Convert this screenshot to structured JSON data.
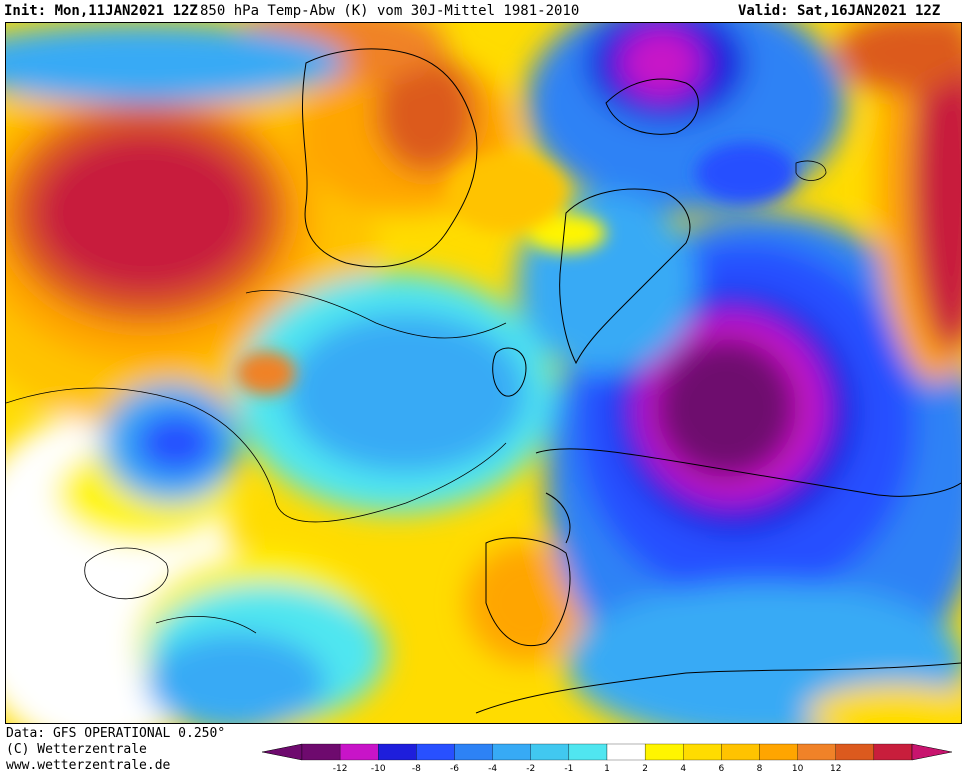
{
  "header": {
    "init": "Init: Mon,11JAN2021 12Z",
    "title": "850 hPa Temp-Abw (K) vom 30J-Mittel 1981-2010",
    "valid": "Valid: Sat,16JAN2021 12Z"
  },
  "footer": {
    "data_line": "Data: GFS OPERATIONAL 0.250°",
    "copyright": "(C) Wetterzentrale",
    "url": "www.wetterzentrale.de"
  },
  "legend": {
    "bins": [
      {
        "color": "#6e0a6e"
      },
      {
        "color": "#c814c8"
      },
      {
        "color": "#1e1edc"
      },
      {
        "color": "#2850ff"
      },
      {
        "color": "#2d82f5"
      },
      {
        "color": "#37aaf5"
      },
      {
        "color": "#41c8f0"
      },
      {
        "color": "#50e6f0"
      },
      {
        "color": "#ffffff"
      },
      {
        "color": "#fff500"
      },
      {
        "color": "#ffdc00"
      },
      {
        "color": "#ffc300"
      },
      {
        "color": "#ffa500"
      },
      {
        "color": "#f08228"
      },
      {
        "color": "#dc5a1e"
      },
      {
        "color": "#c81e3c"
      }
    ],
    "end_low_color": "#6e0a6e",
    "end_high_color": "#c8146e",
    "ticks": [
      "-12",
      "-10",
      "-8",
      "-6",
      "-4",
      "-2",
      "-1",
      "1",
      "2",
      "4",
      "6",
      "8",
      "10",
      "12"
    ]
  }
}
